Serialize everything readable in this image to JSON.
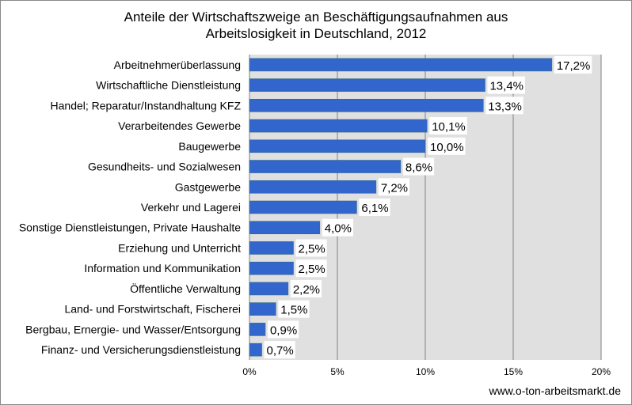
{
  "chart_data": {
    "type": "bar",
    "orientation": "horizontal",
    "title": [
      "Anteile der Wirtschaftszweige an Beschäftigungsaufnahmen aus",
      "Arbeitslosigkeit in Deutschland, 2012"
    ],
    "categories": [
      "Arbeitnehmerüberlassung",
      "Wirtschaftliche Dienstleistung",
      "Handel; Reparatur/Instandhaltung KFZ",
      "Verarbeitendes Gewerbe",
      "Baugewerbe",
      "Gesundheits- und Sozialwesen",
      "Gastgewerbe",
      "Verkehr und Lagerei",
      "Sonstige Dienstleistungen, Private Haushalte",
      "Erziehung und Unterricht",
      "Information und Kommunikation",
      "Öffentliche Verwaltung",
      "Land- und Forstwirtschaft, Fischerei",
      "Bergbau, Ernergie- und Wasser/Entsorgung",
      "Finanz- und Versicherungsdienstleistung"
    ],
    "values": [
      17.2,
      13.4,
      13.3,
      10.1,
      10.0,
      8.6,
      7.2,
      6.1,
      4.0,
      2.5,
      2.5,
      2.2,
      1.5,
      0.9,
      0.7
    ],
    "data_labels": [
      "17,2%",
      "13,4%",
      "13,3%",
      "10,1%",
      "10,0%",
      "8,6%",
      "7,2%",
      "6,1%",
      "4,0%",
      "2,5%",
      "2,5%",
      "2,2%",
      "1,5%",
      "0,9%",
      "0,7%"
    ],
    "xlim": [
      0,
      20
    ],
    "xticks": [
      0,
      5,
      10,
      15,
      20
    ],
    "xtick_labels": [
      "0%",
      "5%",
      "10%",
      "15%",
      "20%"
    ],
    "xlabel": "",
    "ylabel": "",
    "grid": true,
    "legend": "none",
    "bar_color": "#3366cc",
    "plot_background": "#e0e0e0",
    "grid_color": "#808080"
  },
  "source": "www.o-ton-arbeitsmarkt.de"
}
